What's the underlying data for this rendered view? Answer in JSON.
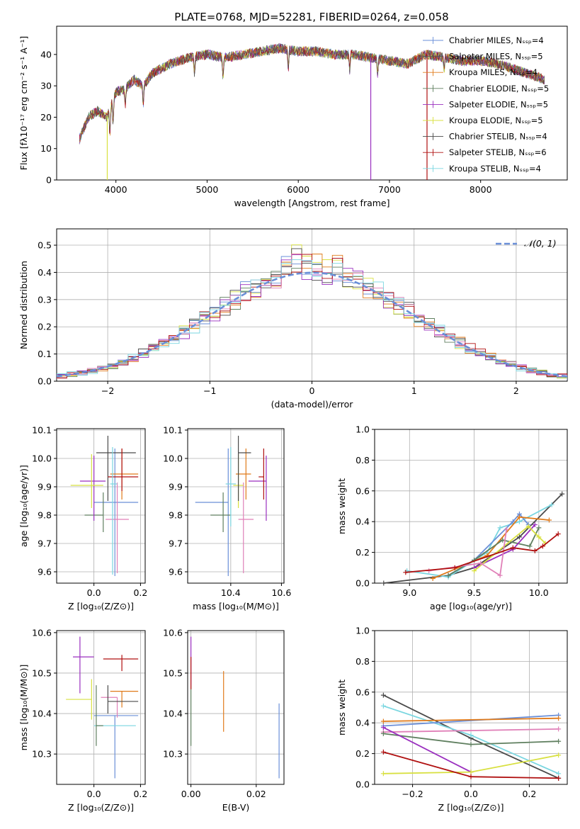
{
  "figure": {
    "title": "PLATE=0768, MJD=52281, FIBERID=0264, z=0.058"
  },
  "colors": {
    "models": [
      "#6a8fd8",
      "#555555",
      "#e07a1a",
      "#5f7f5f",
      "#9a2fbf",
      "#d8e040",
      "#4a4a4a",
      "#b01010",
      "#7ad6e0"
    ],
    "normal": "#6a8fd8",
    "pink": "#e080b8",
    "grid": "#b0b0b0"
  },
  "chart_data": [
    {
      "id": "spectrum",
      "type": "line",
      "xlabel": "wavelength [Angstrom, rest frame]",
      "ylabel": "Flux [fλ10⁻¹⁷ erg cm⁻² s⁻¹ A⁻¹]",
      "xlim": [
        3350,
        8950
      ],
      "ylim": [
        0,
        49
      ],
      "xticks": [
        4000,
        5000,
        6000,
        7000,
        8000
      ],
      "yticks": [
        0,
        10,
        20,
        30,
        40
      ],
      "legend": "top-right",
      "series": [
        {
          "name": "Chabrier MILES, Nₛₛₚ=4"
        },
        {
          "name": "Salpeter MILES, Nₛₛₚ=5"
        },
        {
          "name": "Kroupa MILES, Nₛₛₚ=4"
        },
        {
          "name": "Chabrier ELODIE, Nₛₛₚ=5"
        },
        {
          "name": "Salpeter ELODIE, Nₛₛₚ=5"
        },
        {
          "name": "Kroupa ELODIE, Nₛₛₚ=5"
        },
        {
          "name": "Chabrier STELIB, Nₛₛₚ=4"
        },
        {
          "name": "Salpeter STELIB, Nₛₛₚ=6"
        },
        {
          "name": "Kroupa STELIB, Nₛₛₚ=4"
        }
      ],
      "continuum": {
        "x": [
          3600,
          3700,
          3800,
          3900,
          4000,
          4100,
          4200,
          4300,
          4400,
          4600,
          4800,
          5000,
          5200,
          5400,
          5600,
          5800,
          6000,
          6200,
          6400,
          6600,
          6800,
          7000,
          7200,
          7400,
          7600,
          7800,
          8000,
          8200,
          8400,
          8600,
          8700
        ],
        "y": [
          13,
          20,
          22,
          20,
          28,
          29,
          32,
          30,
          34,
          37,
          39,
          40,
          39,
          40,
          41,
          42,
          41,
          41,
          40,
          40,
          39,
          38,
          37,
          40,
          39,
          38,
          38,
          37,
          35,
          33,
          32
        ]
      }
    },
    {
      "id": "residual-histogram",
      "type": "histogram",
      "xlabel": "(data-model)/error",
      "ylabel": "Normed distribution",
      "xlim": [
        -2.5,
        2.5
      ],
      "ylim": [
        0,
        0.56
      ],
      "xticks": [
        -2,
        -1,
        0,
        1,
        2
      ],
      "xticklabels": [
        "−2",
        "−1",
        "0",
        "1",
        "2"
      ],
      "yticks": [
        0.0,
        0.1,
        0.2,
        0.3,
        0.4,
        0.5
      ],
      "legend_label": "𝒩(0, 1)",
      "bin_width": 0.1,
      "normal": {
        "mean": 0,
        "sigma": 1
      }
    },
    {
      "id": "age-vs-Z",
      "type": "errorbar",
      "xlabel": "Z [log₁₀(Z/Z⊙)]",
      "ylabel": "age  [log₁₀(age/yr)]",
      "xlim": [
        -0.16,
        0.22
      ],
      "ylim": [
        9.56,
        10.105
      ],
      "xticks": [
        0.0,
        0.2
      ],
      "xticklabels": [
        "0.0",
        "0.2"
      ],
      "yticks": [
        9.6,
        9.7,
        9.8,
        9.9,
        10.0,
        10.1
      ],
      "points": [
        {
          "x": 0.09,
          "xerr": [
            0.09,
            0.1
          ],
          "y": 9.845,
          "yerr": [
            0.26,
            0.19
          ],
          "c": 0
        },
        {
          "x": 0.1,
          "xerr": [
            0.05,
            0.05
          ],
          "y": 9.785,
          "yerr": [
            0.19,
            0.13
          ],
          "c": 9
        },
        {
          "x": 0.12,
          "xerr": [
            0.05,
            0.07
          ],
          "y": 9.945,
          "yerr": [
            0.09,
            0.09
          ],
          "c": 2
        },
        {
          "x": 0.04,
          "xerr": [
            0.08,
            0.0
          ],
          "y": 9.8,
          "yerr": [
            0.06,
            0.08
          ],
          "c": 3
        },
        {
          "x": 0.0,
          "xerr": [
            0.06,
            0.05
          ],
          "y": 9.92,
          "yerr": [
            0.14,
            0.09
          ],
          "c": 4
        },
        {
          "x": -0.01,
          "xerr": [
            0.09,
            0.05
          ],
          "y": 9.905,
          "yerr": [
            0.08,
            0.11
          ],
          "c": 5
        },
        {
          "x": 0.06,
          "xerr": [
            0.05,
            0.12
          ],
          "y": 10.02,
          "yerr": [
            0.17,
            0.06
          ],
          "c": 6
        },
        {
          "x": 0.12,
          "xerr": [
            0.06,
            0.07
          ],
          "y": 9.935,
          "yerr": [
            0.05,
            0.1
          ],
          "c": 7
        },
        {
          "x": 0.08,
          "xerr": [
            0.01,
            0.02
          ],
          "y": 9.91,
          "yerr": [
            0.32,
            0.13
          ],
          "c": 8
        }
      ]
    },
    {
      "id": "age-vs-mass",
      "type": "errorbar",
      "xlabel": "mass [log₁₀(M/M⊙)]",
      "ylabel": "",
      "xlim": [
        10.23,
        10.61
      ],
      "ylim": [
        9.56,
        10.105
      ],
      "xticks": [
        10.4,
        10.6
      ],
      "xticklabels": [
        "10.4",
        "10.6"
      ],
      "yticks": [
        9.6,
        9.7,
        9.8,
        9.9,
        10.0,
        10.1
      ],
      "points": [
        {
          "x": 10.39,
          "xerr": [
            0.13,
            0.0
          ],
          "y": 9.845,
          "yerr": [
            0.26,
            0.19
          ],
          "c": 0
        },
        {
          "x": 10.45,
          "xerr": [
            0.02,
            0.04
          ],
          "y": 9.785,
          "yerr": [
            0.19,
            0.13
          ],
          "c": 9
        },
        {
          "x": 10.46,
          "xerr": [
            0.04,
            0.02
          ],
          "y": 9.945,
          "yerr": [
            0.09,
            0.09
          ],
          "c": 2
        },
        {
          "x": 10.37,
          "xerr": [
            0.05,
            0.03
          ],
          "y": 9.8,
          "yerr": [
            0.06,
            0.08
          ],
          "c": 3
        },
        {
          "x": 10.54,
          "xerr": [
            0.07,
            0.0
          ],
          "y": 9.92,
          "yerr": [
            0.14,
            0.09
          ],
          "c": 4
        },
        {
          "x": 10.43,
          "xerr": [
            0.02,
            0.02
          ],
          "y": 9.905,
          "yerr": [
            0.08,
            0.11
          ],
          "c": 5
        },
        {
          "x": 10.43,
          "xerr": [
            0.0,
            0.05
          ],
          "y": 10.02,
          "yerr": [
            0.17,
            0.06
          ],
          "c": 6
        },
        {
          "x": 10.53,
          "xerr": [
            0.02,
            0.0
          ],
          "y": 9.935,
          "yerr": [
            0.08,
            0.1
          ],
          "c": 7
        },
        {
          "x": 10.4,
          "xerr": [
            0.02,
            0.02
          ],
          "y": 9.91,
          "yerr": [
            0.15,
            0.13
          ],
          "c": 8
        }
      ]
    },
    {
      "id": "weight-vs-age",
      "type": "line",
      "xlabel": "age  [log₁₀(age/yr)]",
      "ylabel": "mass weight",
      "xlim": [
        8.73,
        10.22
      ],
      "ylim": [
        0,
        1.0
      ],
      "xticks": [
        9.0,
        9.5,
        10.0
      ],
      "xticklabels": [
        "9.0",
        "9.5",
        "10.0"
      ],
      "yticks": [
        0.0,
        0.2,
        0.4,
        0.6,
        0.8,
        1.0
      ],
      "series": [
        {
          "c": 6,
          "x": [
            8.8,
            9.3,
            9.5,
            9.85,
            10.18
          ],
          "y": [
            0.0,
            0.05,
            0.1,
            0.3,
            0.58
          ]
        },
        {
          "c": 8,
          "x": [
            8.98,
            9.3,
            9.6,
            9.7,
            9.85,
            10.1
          ],
          "y": [
            0.08,
            0.04,
            0.2,
            0.36,
            0.4,
            0.51
          ]
        },
        {
          "c": 0,
          "x": [
            9.3,
            9.5,
            9.8,
            9.85,
            9.92
          ],
          "y": [
            0.05,
            0.15,
            0.4,
            0.45,
            0.38
          ]
        },
        {
          "c": 2,
          "x": [
            9.18,
            9.6,
            9.85,
            10.08
          ],
          "y": [
            0.03,
            0.18,
            0.43,
            0.41
          ]
        },
        {
          "c": 3,
          "x": [
            9.3,
            9.5,
            9.72,
            9.93,
            10.0
          ],
          "y": [
            0.05,
            0.15,
            0.28,
            0.24,
            0.36
          ]
        },
        {
          "c": 4,
          "x": [
            9.5,
            9.8,
            9.97
          ],
          "y": [
            0.1,
            0.22,
            0.38
          ]
        },
        {
          "c": 5,
          "x": [
            9.5,
            9.92,
            10.0,
            10.05
          ],
          "y": [
            0.08,
            0.37,
            0.3,
            0.26
          ]
        },
        {
          "c": 9,
          "x": [
            9.15,
            9.55,
            9.7,
            9.75
          ],
          "y": [
            0.08,
            0.13,
            0.05,
            0.35
          ]
        },
        {
          "c": 7,
          "x": [
            8.97,
            9.35,
            9.8,
            9.97,
            10.03,
            10.15
          ],
          "y": [
            0.07,
            0.1,
            0.23,
            0.21,
            0.24,
            0.32
          ]
        }
      ]
    },
    {
      "id": "mass-vs-Z",
      "type": "errorbar",
      "xlabel": "Z [log₁₀(Z/Z⊙)]",
      "ylabel": "mass [log₁₀(M/M⊙)]",
      "xlim": [
        -0.16,
        0.22
      ],
      "ylim": [
        10.225,
        10.605
      ],
      "xticks": [
        0.0,
        0.2
      ],
      "xticklabels": [
        "0.0",
        "0.2"
      ],
      "yticks": [
        10.3,
        10.4,
        10.5,
        10.6
      ],
      "points": [
        {
          "x": 0.09,
          "xerr": [
            0.09,
            0.1
          ],
          "y": 10.395,
          "yerr": [
            0.155,
            0.0
          ],
          "c": 0
        },
        {
          "x": 0.1,
          "xerr": [
            0.07,
            0.0
          ],
          "y": 10.44,
          "yerr": [
            0.05,
            0.0
          ],
          "c": 9
        },
        {
          "x": 0.12,
          "xerr": [
            0.05,
            0.07
          ],
          "y": 10.455,
          "yerr": [
            0.04,
            0.0
          ],
          "c": 2
        },
        {
          "x": 0.08,
          "xerr": [
            0.08,
            0.1
          ],
          "y": 10.37,
          "yerr": [
            0.0,
            0.0
          ],
          "c": 8
        },
        {
          "x": 0.01,
          "xerr": [
            0.0,
            0.03
          ],
          "y": 10.37,
          "yerr": [
            0.05,
            0.1
          ],
          "c": 3
        },
        {
          "x": -0.06,
          "xerr": [
            0.03,
            0.06
          ],
          "y": 10.54,
          "yerr": [
            0.09,
            0.05
          ],
          "c": 4
        },
        {
          "x": -0.01,
          "xerr": [
            0.11,
            0.0
          ],
          "y": 10.435,
          "yerr": [
            0.05,
            0.05
          ],
          "c": 5
        },
        {
          "x": 0.06,
          "xerr": [
            0.0,
            0.13
          ],
          "y": 10.43,
          "yerr": [
            0.03,
            0.04
          ],
          "c": 6
        },
        {
          "x": 0.12,
          "xerr": [
            0.08,
            0.07
          ],
          "y": 10.535,
          "yerr": [
            0.03,
            0.01
          ],
          "c": 7
        }
      ]
    },
    {
      "id": "mass-vs-EBV",
      "type": "errorbar",
      "xlabel": "E(B-V)",
      "ylabel": "",
      "xlim": [
        -0.001,
        0.0285
      ],
      "ylim": [
        10.225,
        10.605
      ],
      "xticks": [
        0.0,
        0.02
      ],
      "xticklabels": [
        "0.00",
        "0.02"
      ],
      "yticks": [
        10.3,
        10.4,
        10.5,
        10.6
      ],
      "points": [
        {
          "x": 0.027,
          "y": 10.335,
          "yerr": [
            0.095,
            0.09
          ],
          "c": 0
        },
        {
          "x": 0.01,
          "y": 10.43,
          "yerr": [
            0.075,
            0.075
          ],
          "c": 2
        },
        {
          "x": 0.0,
          "y": 10.395,
          "yerr": [
            0.075,
            0.075
          ],
          "c": 3
        },
        {
          "x": 0.0,
          "y": 10.51,
          "yerr": [
            0.04,
            0.08
          ],
          "c": 4
        },
        {
          "x": 0.0,
          "y": 10.5,
          "yerr": [
            0.04,
            0.04
          ],
          "c": 7
        }
      ]
    },
    {
      "id": "weight-vs-Z",
      "type": "line",
      "xlabel": "Z [log₁₀(Z/Z⊙)]",
      "ylabel": "mass weight",
      "xlim": [
        -0.33,
        0.33
      ],
      "ylim": [
        0,
        1.0
      ],
      "xticks": [
        -0.2,
        0.0,
        0.2
      ],
      "xticklabels": [
        "−0.2",
        "0.0",
        "0.2"
      ],
      "yticks": [
        0.0,
        0.2,
        0.4,
        0.6,
        0.8,
        1.0
      ],
      "series": [
        {
          "c": 6,
          "x": [
            -0.3,
            0.0,
            0.3
          ],
          "y": [
            0.58,
            0.3,
            0.04
          ]
        },
        {
          "c": 8,
          "x": [
            -0.3,
            0.0,
            0.3
          ],
          "y": [
            0.51,
            0.32,
            0.07
          ]
        },
        {
          "c": 0,
          "x": [
            -0.3,
            0.3
          ],
          "y": [
            0.38,
            0.45
          ]
        },
        {
          "c": 2,
          "x": [
            -0.3,
            0.3
          ],
          "y": [
            0.41,
            0.43
          ]
        },
        {
          "c": 9,
          "x": [
            -0.3,
            0.3
          ],
          "y": [
            0.34,
            0.36
          ]
        },
        {
          "c": 3,
          "x": [
            -0.3,
            0.0,
            0.3
          ],
          "y": [
            0.33,
            0.26,
            0.28
          ]
        },
        {
          "c": 4,
          "x": [
            -0.3,
            0.0
          ],
          "y": [
            0.37,
            0.08
          ]
        },
        {
          "c": 5,
          "x": [
            -0.3,
            0.0,
            0.3
          ],
          "y": [
            0.07,
            0.08,
            0.19
          ]
        },
        {
          "c": 7,
          "x": [
            -0.3,
            0.0,
            0.3
          ],
          "y": [
            0.21,
            0.05,
            0.04
          ]
        }
      ]
    }
  ]
}
